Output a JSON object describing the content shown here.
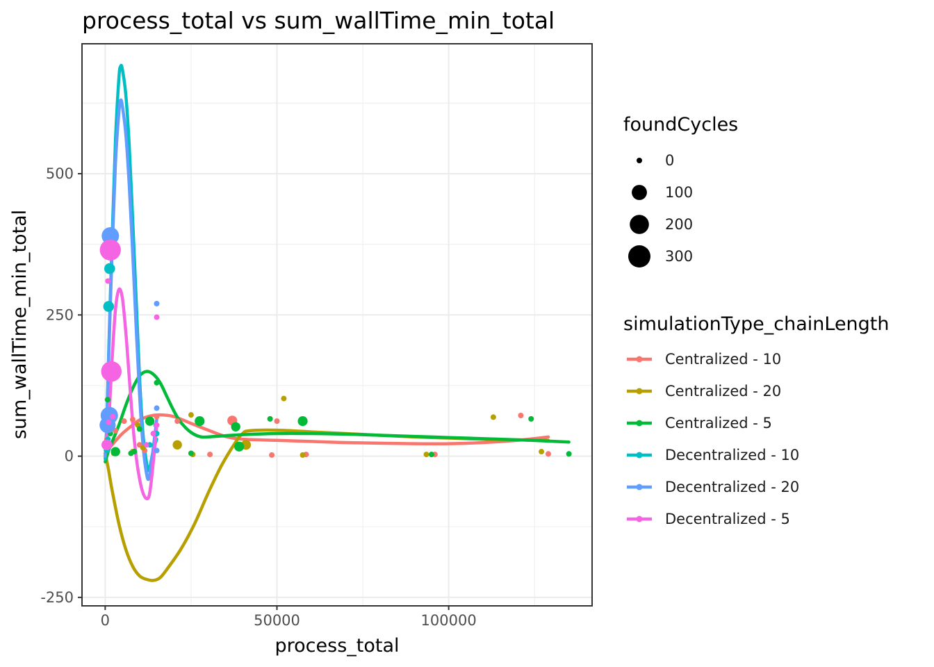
{
  "chart_data": {
    "type": "scatter",
    "title": "process_total  vs  sum_wallTime_min_total",
    "xlabel": "process_total",
    "ylabel": "sum_wallTime_min_total",
    "xlim": [
      -6750,
      141750
    ],
    "ylim": [
      -265,
      730
    ],
    "x_ticks": [
      0,
      50000,
      100000
    ],
    "x_tick_labels": [
      "0",
      "50000",
      "100000"
    ],
    "y_ticks": [
      -250,
      0,
      250,
      500
    ],
    "y_tick_labels": [
      "-250",
      "0",
      "250",
      "500"
    ],
    "grid": true,
    "legend_position": "right",
    "size_legend": {
      "title": "foundCycles",
      "entries": [
        {
          "label": "0",
          "value": 0
        },
        {
          "label": "100",
          "value": 100
        },
        {
          "label": "200",
          "value": 200
        },
        {
          "label": "300",
          "value": 300
        }
      ]
    },
    "color_legend": {
      "title": "simulationType_chainLength",
      "entries": [
        {
          "label": "Centralized - 10",
          "color": "#F8766D"
        },
        {
          "label": "Centralized - 20",
          "color": "#B79F00"
        },
        {
          "label": "Centralized - 5",
          "color": "#00BA38"
        },
        {
          "label": "Decentralized - 10",
          "color": "#00BFC4"
        },
        {
          "label": "Decentralized - 20",
          "color": "#619CFF"
        },
        {
          "label": "Decentralized - 5",
          "color": "#F564E3"
        }
      ]
    },
    "series": [
      {
        "name": "Centralized - 10",
        "color": "#F8766D",
        "points": [
          {
            "x": 500,
            "y": 30,
            "s": 0
          },
          {
            "x": 1000,
            "y": 50,
            "s": 0
          },
          {
            "x": 3000,
            "y": 45,
            "s": 0
          },
          {
            "x": 5500,
            "y": 62,
            "s": 0
          },
          {
            "x": 8000,
            "y": 65,
            "s": 0
          },
          {
            "x": 10000,
            "y": 20,
            "s": 0
          },
          {
            "x": 11500,
            "y": 10,
            "s": 0
          },
          {
            "x": 15000,
            "y": 70,
            "s": 0
          },
          {
            "x": 21000,
            "y": 62,
            "s": 0
          },
          {
            "x": 30500,
            "y": 3,
            "s": 0
          },
          {
            "x": 37000,
            "y": 63,
            "s": 20
          },
          {
            "x": 41000,
            "y": 18,
            "s": 0
          },
          {
            "x": 48500,
            "y": 2,
            "s": 0
          },
          {
            "x": 50000,
            "y": 62,
            "s": 0
          },
          {
            "x": 58500,
            "y": 3,
            "s": 0
          },
          {
            "x": 96000,
            "y": 3,
            "s": 0
          },
          {
            "x": 121000,
            "y": 72,
            "s": 0
          },
          {
            "x": 129000,
            "y": 4,
            "s": 0
          }
        ],
        "smooth": [
          [
            0,
            5
          ],
          [
            2000,
            20
          ],
          [
            5000,
            40
          ],
          [
            8000,
            55
          ],
          [
            10000,
            64
          ],
          [
            13000,
            71
          ],
          [
            16000,
            73
          ],
          [
            20000,
            70
          ],
          [
            25000,
            58
          ],
          [
            30000,
            46
          ],
          [
            35000,
            35
          ],
          [
            40000,
            30
          ],
          [
            50000,
            28
          ],
          [
            60000,
            26
          ],
          [
            70000,
            24
          ],
          [
            80000,
            23
          ],
          [
            90000,
            22
          ],
          [
            100000,
            22
          ],
          [
            110000,
            24
          ],
          [
            120000,
            28
          ],
          [
            129000,
            34
          ]
        ]
      },
      {
        "name": "Centralized - 20",
        "color": "#B79F00",
        "points": [
          {
            "x": 500,
            "y": 10,
            "s": 0
          },
          {
            "x": 1500,
            "y": 60,
            "s": 0
          },
          {
            "x": 2500,
            "y": 5,
            "s": 0
          },
          {
            "x": 8000,
            "y": 8,
            "s": 0
          },
          {
            "x": 9500,
            "y": 55,
            "s": 0
          },
          {
            "x": 11000,
            "y": 15,
            "s": 0
          },
          {
            "x": 21000,
            "y": 20,
            "s": 15
          },
          {
            "x": 25000,
            "y": 73,
            "s": 0
          },
          {
            "x": 25500,
            "y": 3,
            "s": 0
          },
          {
            "x": 41000,
            "y": 20,
            "s": 20
          },
          {
            "x": 52000,
            "y": 102,
            "s": 0
          },
          {
            "x": 57000,
            "y": 62,
            "s": 0
          },
          {
            "x": 57500,
            "y": 2,
            "s": 0
          },
          {
            "x": 93500,
            "y": 3,
            "s": 0
          },
          {
            "x": 113000,
            "y": 69,
            "s": 0
          },
          {
            "x": 127000,
            "y": 8,
            "s": 0
          }
        ],
        "smooth": [
          [
            0,
            5
          ],
          [
            1000,
            -25
          ],
          [
            2000,
            -60
          ],
          [
            4000,
            -120
          ],
          [
            6000,
            -165
          ],
          [
            8000,
            -195
          ],
          [
            10000,
            -212
          ],
          [
            12000,
            -218
          ],
          [
            14000,
            -220
          ],
          [
            16000,
            -215
          ],
          [
            18000,
            -200
          ],
          [
            22000,
            -165
          ],
          [
            26000,
            -120
          ],
          [
            30000,
            -65
          ],
          [
            34000,
            -15
          ],
          [
            38000,
            25
          ],
          [
            40000,
            40
          ],
          [
            42000,
            45
          ],
          [
            50000,
            46
          ],
          [
            60000,
            43
          ],
          [
            70000,
            40
          ],
          [
            80000,
            37
          ],
          [
            90000,
            34
          ],
          [
            100000,
            32
          ],
          [
            110000,
            30
          ],
          [
            120000,
            29
          ],
          [
            129000,
            28
          ]
        ]
      },
      {
        "name": "Centralized - 5",
        "color": "#00BA38",
        "points": [
          {
            "x": 300,
            "y": 60,
            "s": 0
          },
          {
            "x": 700,
            "y": 100,
            "s": 0
          },
          {
            "x": 1200,
            "y": 80,
            "s": 0
          },
          {
            "x": 1500,
            "y": 40,
            "s": 0
          },
          {
            "x": 2000,
            "y": 70,
            "s": 0
          },
          {
            "x": 3000,
            "y": 8,
            "s": 15
          },
          {
            "x": 7500,
            "y": 5,
            "s": 0
          },
          {
            "x": 8500,
            "y": 8,
            "s": 0
          },
          {
            "x": 10000,
            "y": 48,
            "s": 0
          },
          {
            "x": 13000,
            "y": 62,
            "s": 15
          },
          {
            "x": 15000,
            "y": 130,
            "s": 0
          },
          {
            "x": 25000,
            "y": 5,
            "s": 0
          },
          {
            "x": 27500,
            "y": 62,
            "s": 20
          },
          {
            "x": 38000,
            "y": 52,
            "s": 15
          },
          {
            "x": 39000,
            "y": 17,
            "s": 20
          },
          {
            "x": 48000,
            "y": 66,
            "s": 0
          },
          {
            "x": 57500,
            "y": 62,
            "s": 20
          },
          {
            "x": 95000,
            "y": 3,
            "s": 0
          },
          {
            "x": 124000,
            "y": 66,
            "s": 0
          },
          {
            "x": 135000,
            "y": 4,
            "s": 0
          }
        ],
        "smooth": [
          [
            0,
            -10
          ],
          [
            1000,
            10
          ],
          [
            2000,
            25
          ],
          [
            4000,
            55
          ],
          [
            6000,
            90
          ],
          [
            8000,
            120
          ],
          [
            10000,
            142
          ],
          [
            12000,
            150
          ],
          [
            14000,
            145
          ],
          [
            16000,
            130
          ],
          [
            18000,
            105
          ],
          [
            20000,
            80
          ],
          [
            22000,
            60
          ],
          [
            25000,
            42
          ],
          [
            28000,
            34
          ],
          [
            32000,
            35
          ],
          [
            40000,
            38
          ],
          [
            50000,
            40
          ],
          [
            60000,
            40
          ],
          [
            70000,
            39
          ],
          [
            80000,
            37
          ],
          [
            90000,
            35
          ],
          [
            100000,
            33
          ],
          [
            110000,
            31
          ],
          [
            120000,
            29
          ],
          [
            128000,
            27
          ],
          [
            135000,
            25
          ]
        ]
      },
      {
        "name": "Decentralized - 10",
        "color": "#00BFC4",
        "points": [
          {
            "x": 500,
            "y": 10,
            "s": 0
          },
          {
            "x": 800,
            "y": 30,
            "s": 0
          },
          {
            "x": 1000,
            "y": 265,
            "s": 30
          },
          {
            "x": 1300,
            "y": 332,
            "s": 30
          },
          {
            "x": 1500,
            "y": 370,
            "s": 0
          },
          {
            "x": 1800,
            "y": 60,
            "s": 0
          },
          {
            "x": 13000,
            "y": 20,
            "s": 0
          },
          {
            "x": 15000,
            "y": 40,
            "s": 0
          }
        ],
        "smooth": [
          [
            0,
            -5
          ],
          [
            500,
            60
          ],
          [
            1000,
            180
          ],
          [
            2000,
            380
          ],
          [
            3000,
            560
          ],
          [
            4000,
            670
          ],
          [
            4500,
            690
          ],
          [
            5000,
            685
          ],
          [
            6000,
            640
          ],
          [
            7000,
            550
          ],
          [
            8000,
            420
          ],
          [
            9000,
            280
          ],
          [
            10000,
            140
          ],
          [
            11000,
            40
          ],
          [
            12000,
            -10
          ],
          [
            12500,
            -25
          ],
          [
            13000,
            -20
          ],
          [
            14000,
            10
          ],
          [
            15000,
            30
          ]
        ]
      },
      {
        "name": "Decentralized - 20",
        "color": "#619CFF",
        "points": [
          {
            "x": 500,
            "y": 20,
            "s": 0
          },
          {
            "x": 700,
            "y": 55,
            "s": 120
          },
          {
            "x": 1000,
            "y": 65,
            "s": 30
          },
          {
            "x": 1200,
            "y": 72,
            "s": 150
          },
          {
            "x": 1500,
            "y": 390,
            "s": 150
          },
          {
            "x": 15000,
            "y": 270,
            "s": 0
          },
          {
            "x": 15000,
            "y": 85,
            "s": 0
          },
          {
            "x": 15000,
            "y": 10,
            "s": 0
          },
          {
            "x": 14800,
            "y": 55,
            "s": 0
          }
        ],
        "smooth": [
          [
            0,
            0
          ],
          [
            500,
            60
          ],
          [
            1000,
            170
          ],
          [
            2000,
            360
          ],
          [
            3000,
            520
          ],
          [
            4000,
            610
          ],
          [
            4500,
            630
          ],
          [
            5000,
            620
          ],
          [
            6000,
            570
          ],
          [
            7000,
            480
          ],
          [
            8000,
            360
          ],
          [
            9000,
            230
          ],
          [
            10000,
            110
          ],
          [
            11000,
            20
          ],
          [
            12000,
            -30
          ],
          [
            12700,
            -40
          ],
          [
            13500,
            -10
          ],
          [
            14500,
            40
          ],
          [
            15000,
            65
          ]
        ]
      },
      {
        "name": "Decentralized - 5",
        "color": "#F564E3",
        "points": [
          {
            "x": 500,
            "y": 20,
            "s": 30
          },
          {
            "x": 800,
            "y": 310,
            "s": 0
          },
          {
            "x": 1000,
            "y": 60,
            "s": 0
          },
          {
            "x": 1500,
            "y": 365,
            "s": 260
          },
          {
            "x": 1800,
            "y": 150,
            "s": 240
          },
          {
            "x": 2200,
            "y": 70,
            "s": 0
          },
          {
            "x": 12000,
            "y": 20,
            "s": 0
          },
          {
            "x": 14000,
            "y": 40,
            "s": 0
          },
          {
            "x": 15000,
            "y": 246,
            "s": 0
          },
          {
            "x": 15000,
            "y": 55,
            "s": 0
          }
        ],
        "smooth": [
          [
            0,
            10
          ],
          [
            1000,
            60
          ],
          [
            2000,
            170
          ],
          [
            3000,
            260
          ],
          [
            4000,
            295
          ],
          [
            5000,
            280
          ],
          [
            6000,
            220
          ],
          [
            7000,
            140
          ],
          [
            8000,
            60
          ],
          [
            9000,
            0
          ],
          [
            10000,
            -40
          ],
          [
            11000,
            -65
          ],
          [
            12000,
            -75
          ],
          [
            12800,
            -70
          ],
          [
            13500,
            -40
          ],
          [
            14500,
            20
          ],
          [
            15000,
            55
          ]
        ]
      }
    ]
  }
}
